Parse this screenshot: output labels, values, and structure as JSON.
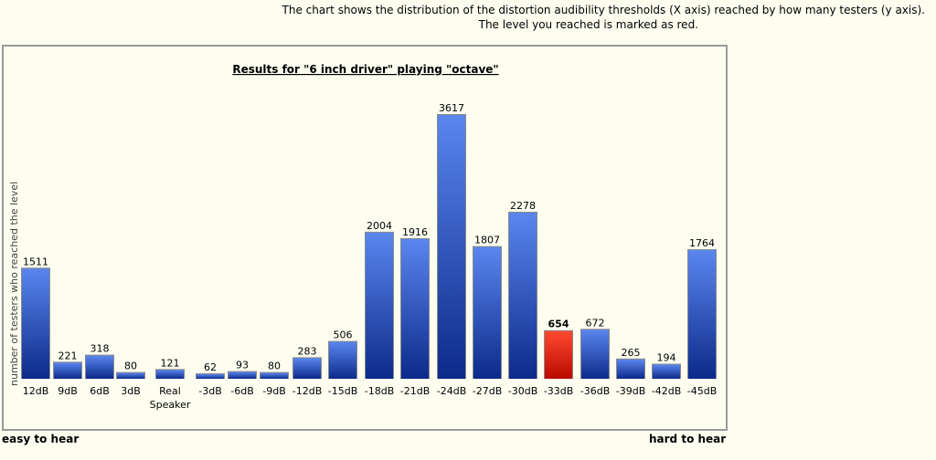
{
  "description": {
    "line1": "The chart shows the distribution of the distortion audibility thresholds (X axis) reached by how many testers (y axis).",
    "line2": "The level you reached is marked as red."
  },
  "footer": {
    "left_label": "easy to hear",
    "right_label": "hard to hear"
  },
  "colors": {
    "bar_top": "#5a86ee",
    "bar_bottom": "#0c2a8a",
    "highlight_top": "#ff4a2e",
    "highlight_bottom": "#b80a00"
  },
  "chart_data": {
    "type": "bar",
    "title": "Results for \"6 inch driver\" playing \"octave\"",
    "xlabel": "",
    "ylabel": "number of testers who reached the level",
    "ylim": [
      0,
      3617
    ],
    "grid": false,
    "categories": [
      "12dB",
      "9dB",
      "6dB",
      "3dB",
      "Real Speaker",
      "-3dB",
      "-6dB",
      "-9dB",
      "-12dB",
      "-15dB",
      "-18dB",
      "-21dB",
      "-24dB",
      "-27dB",
      "-30dB",
      "-33dB",
      "-36dB",
      "-39dB",
      "-42dB",
      "-45dB"
    ],
    "values": [
      1511,
      221,
      318,
      80,
      121,
      62,
      93,
      80,
      283,
      506,
      2004,
      1916,
      3617,
      1807,
      2278,
      654,
      672,
      265,
      194,
      1764
    ],
    "highlight_category": "-33dB"
  }
}
